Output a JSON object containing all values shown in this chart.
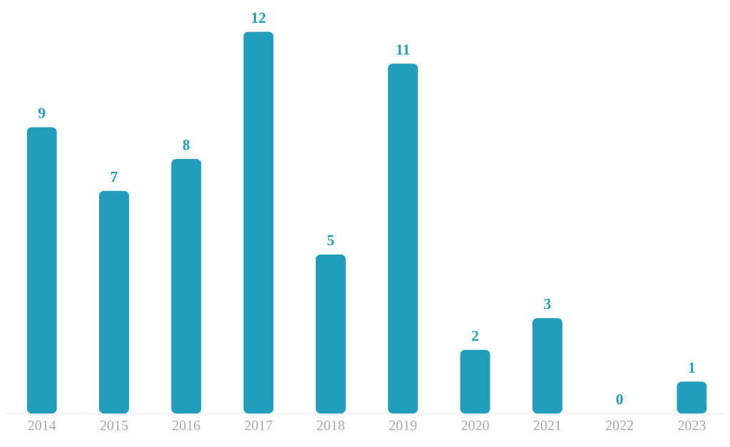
{
  "chart_data": {
    "type": "bar",
    "categories": [
      "2014",
      "2015",
      "2016",
      "2017",
      "2018",
      "2019",
      "2020",
      "2021",
      "2022",
      "2023"
    ],
    "values": [
      9,
      7,
      8,
      12,
      5,
      11,
      2,
      3,
      0,
      1
    ],
    "color": "#219ebc",
    "data_labels": true
  }
}
